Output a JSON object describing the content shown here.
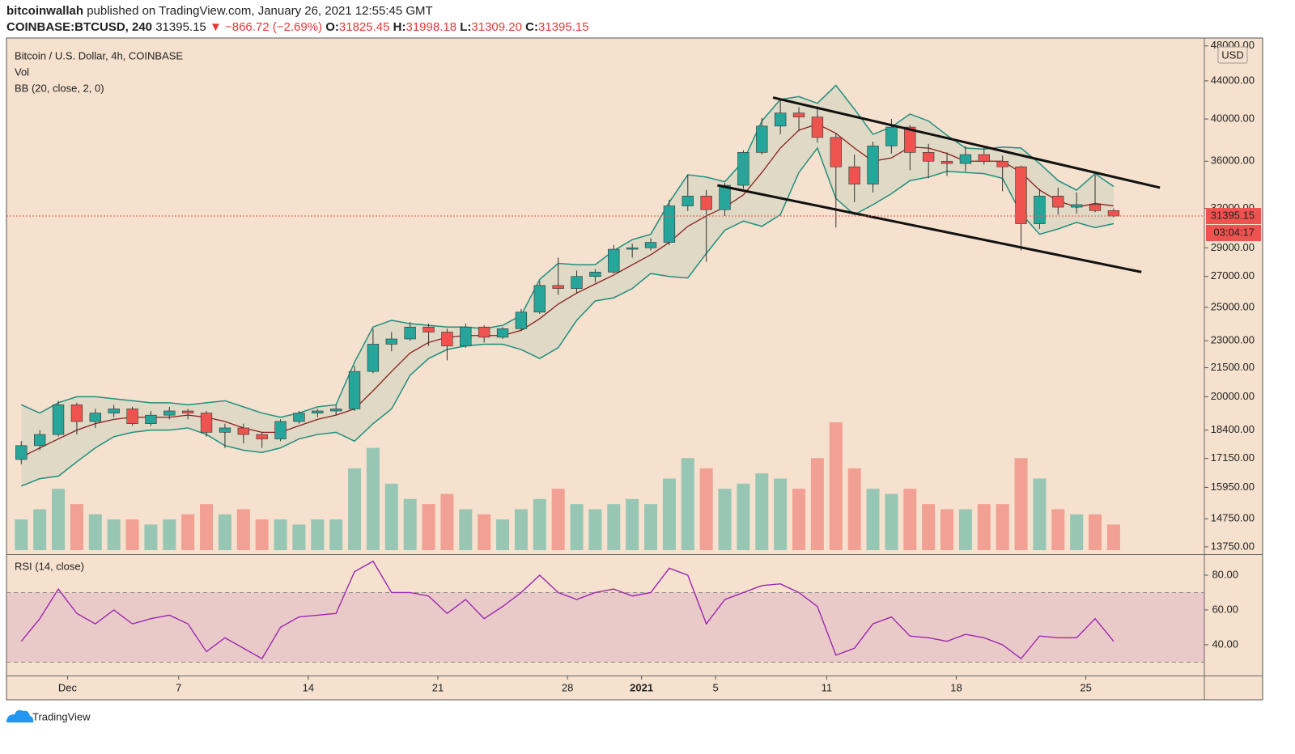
{
  "header": {
    "publisher": "bitcoinwallah",
    "published": "published on TradingView.com, January 26, 2021 12:55:45 GMT",
    "symbol": "COINBASE:BTCUSD, 240",
    "price": "31395.15",
    "change": "▼ −866.72 (−2.69%)",
    "o_label": "O:",
    "o": "31825.45",
    "h_label": "H:",
    "h": "31998.18",
    "l_label": "L:",
    "l": "31309.20",
    "c_label": "C:",
    "c": "31395.15"
  },
  "footer": {
    "brand": "TradingView"
  },
  "chart_data": [
    {
      "type": "candlestick",
      "title": "Bitcoin / U.S. Dollar, 4h, COINBASE",
      "y_label": "USD",
      "log_scale": true,
      "up_color": "#26a69a",
      "down_color": "#ef5350",
      "xlim": [
        -0.3,
        64.4
      ],
      "ylim": [
        13500,
        48960
      ],
      "yticks": [
        {
          "value": 48000,
          "label": "48000.00"
        },
        {
          "value": 44000,
          "label": "44000.00"
        },
        {
          "value": 40000,
          "label": "40000.00"
        },
        {
          "value": 36000,
          "label": "36000.00"
        },
        {
          "value": 32000,
          "label": "32000.00"
        },
        {
          "value": 29000,
          "label": "29000.00"
        },
        {
          "value": 27000,
          "label": "27000.00"
        },
        {
          "value": 25000,
          "label": "25000.00"
        },
        {
          "value": 23000,
          "label": "23000.00"
        },
        {
          "value": 21500,
          "label": "21500.00"
        },
        {
          "value": 20000,
          "label": "20000.00"
        },
        {
          "value": 18400,
          "label": "18400.00"
        },
        {
          "value": 17150,
          "label": "17150.00"
        },
        {
          "value": 15950,
          "label": "15950.00"
        },
        {
          "value": 14750,
          "label": "14750.00"
        },
        {
          "value": 13750,
          "label": "13750.00"
        }
      ],
      "open": [
        17100,
        17700,
        18200,
        19600,
        18800,
        19200,
        19400,
        18700,
        19100,
        19300,
        19200,
        18300,
        18500,
        18200,
        18000,
        18800,
        19200,
        19300,
        19400,
        21300,
        22800,
        23100,
        23800,
        23500,
        22700,
        23800,
        23200,
        23700,
        24700,
        26400,
        26200,
        27000,
        27300,
        28900,
        29000,
        29400,
        32200,
        33000,
        31900,
        33900,
        36800,
        39300,
        40600,
        40200,
        38200,
        35500,
        34000,
        37400,
        39200,
        36800,
        36000,
        35800,
        36600,
        36000,
        35500,
        30800,
        33000,
        32100,
        32300,
        31825.45
      ],
      "high": [
        17900,
        18400,
        19800,
        19700,
        19400,
        19600,
        19500,
        19300,
        19500,
        19400,
        19300,
        18700,
        18700,
        18300,
        18900,
        19300,
        19400,
        19600,
        21600,
        23700,
        23500,
        24100,
        24000,
        23700,
        24000,
        23900,
        23800,
        24900,
        26700,
        28300,
        27400,
        27500,
        29200,
        29300,
        29700,
        32700,
        34800,
        33500,
        34100,
        37000,
        40100,
        41900,
        41200,
        41300,
        38600,
        36600,
        37800,
        40000,
        39400,
        37600,
        36800,
        37400,
        37200,
        36500,
        35600,
        33600,
        33700,
        33300,
        34800,
        31998.18
      ],
      "low": [
        16900,
        17500,
        18100,
        18200,
        18500,
        19000,
        18600,
        18600,
        18900,
        18900,
        18100,
        17600,
        17800,
        17600,
        17900,
        18700,
        19000,
        19100,
        19300,
        21200,
        22400,
        23000,
        22700,
        21900,
        22600,
        22900,
        23100,
        23600,
        24600,
        25800,
        25900,
        26600,
        27200,
        28300,
        28800,
        29200,
        31800,
        28000,
        31400,
        33600,
        36600,
        38500,
        38800,
        37700,
        30500,
        32500,
        33300,
        36700,
        35200,
        34500,
        34700,
        35100,
        35700,
        33400,
        28800,
        30400,
        31500,
        31600,
        31700,
        31309.2
      ],
      "close": [
        17700,
        18200,
        19600,
        18800,
        19200,
        19400,
        18700,
        19100,
        19300,
        19200,
        18300,
        18500,
        18200,
        18000,
        18800,
        19200,
        19300,
        19400,
        21300,
        22800,
        23100,
        23800,
        23500,
        22700,
        23800,
        23200,
        23700,
        24700,
        26400,
        26200,
        27000,
        27300,
        28900,
        29000,
        29400,
        32200,
        33000,
        31900,
        33900,
        36800,
        39300,
        40600,
        40200,
        38200,
        35500,
        34000,
        37400,
        39200,
        36800,
        36000,
        35800,
        36600,
        36000,
        35500,
        30800,
        33000,
        32100,
        32300,
        31825.45,
        31395.15
      ],
      "volume_name": "Vol",
      "volume": [
        6,
        8,
        12,
        9,
        7,
        6,
        6,
        5,
        6,
        7,
        9,
        7,
        8,
        6,
        6,
        5,
        6,
        6,
        16,
        20,
        13,
        10,
        9,
        11,
        8,
        7,
        6,
        8,
        10,
        12,
        9,
        8,
        9,
        10,
        9,
        14,
        18,
        16,
        12,
        13,
        15,
        14,
        12,
        18,
        25,
        16,
        12,
        11,
        12,
        9,
        8,
        8,
        9,
        9,
        18,
        14,
        8,
        7,
        7,
        5
      ],
      "bb": {
        "name": "BB (20, close, 2, 0)",
        "band_color": "#1f8f80",
        "basis_color": "#8b1e1e",
        "upper": [
          19600,
          19200,
          19700,
          20000,
          20000,
          19900,
          19800,
          19700,
          19700,
          19600,
          19700,
          19800,
          19500,
          19200,
          19000,
          19200,
          19500,
          19600,
          21800,
          23800,
          24200,
          24000,
          23900,
          23800,
          23800,
          23700,
          23900,
          24500,
          26800,
          27900,
          27800,
          27800,
          28800,
          29600,
          30000,
          32500,
          34800,
          34600,
          34200,
          36000,
          39800,
          42000,
          42300,
          41600,
          43500,
          41000,
          38500,
          39200,
          40500,
          39800,
          38400,
          37200,
          37100,
          37300,
          37200,
          35800,
          34300,
          33500,
          34900,
          33800
        ],
        "basis": [
          17200,
          17600,
          18000,
          18400,
          18700,
          18900,
          19000,
          19000,
          19000,
          19100,
          19000,
          18800,
          18500,
          18300,
          18300,
          18600,
          18900,
          19100,
          19400,
          20300,
          21300,
          22300,
          22900,
          23200,
          23300,
          23300,
          23300,
          23600,
          24300,
          25200,
          25900,
          26500,
          27100,
          27800,
          28500,
          29400,
          30600,
          31400,
          32100,
          33100,
          35000,
          37200,
          38900,
          39500,
          38600,
          37200,
          36000,
          36300,
          37300,
          37200,
          36700,
          36000,
          36000,
          36000,
          35000,
          33500,
          32600,
          32100,
          32400,
          32200
        ],
        "lower": [
          16000,
          16300,
          16400,
          17000,
          17600,
          18100,
          18300,
          18400,
          18400,
          18500,
          18200,
          17700,
          17500,
          17400,
          17600,
          18000,
          18200,
          18300,
          17900,
          18700,
          19400,
          21100,
          22000,
          22500,
          22700,
          22800,
          22800,
          22500,
          22000,
          22600,
          24200,
          25400,
          25600,
          26200,
          27200,
          27000,
          26900,
          28600,
          30300,
          31000,
          30600,
          31500,
          35000,
          37200,
          32800,
          31500,
          32300,
          33200,
          34300,
          34600,
          35100,
          35000,
          34900,
          34500,
          31600,
          30000,
          30400,
          30900,
          30500,
          30800
        ]
      },
      "channel": [
        {
          "x": [
            41.1,
            62.0
          ],
          "y": [
            42200,
            33700
          ]
        },
        {
          "x": [
            38.1,
            61.0
          ],
          "y": [
            33900,
            27300
          ]
        }
      ],
      "last_price": 31395.15,
      "countdown": "03:04:17"
    },
    {
      "type": "line",
      "title": "RSI (14, close)",
      "color": "#9c27b0",
      "xlim": [
        -0.3,
        64.4
      ],
      "ylim": [
        22.3,
        91.6
      ],
      "band": [
        30,
        70
      ],
      "yticks": [
        {
          "value": 40,
          "label": "40.00"
        },
        {
          "value": 60,
          "label": "60.00"
        },
        {
          "value": 80,
          "label": "80.00"
        }
      ],
      "xticks": [
        {
          "value": 3,
          "label": "Dec"
        },
        {
          "value": 9,
          "label": "7"
        },
        {
          "value": 16,
          "label": "14"
        },
        {
          "value": 23,
          "label": "21"
        },
        {
          "value": 30,
          "label": "28"
        },
        {
          "value": 34,
          "label": "2021"
        },
        {
          "value": 38,
          "label": "5"
        },
        {
          "value": 44,
          "label": "11"
        },
        {
          "value": 51,
          "label": "18"
        },
        {
          "value": 58,
          "label": "25"
        }
      ],
      "values": [
        42,
        55,
        72,
        58,
        52,
        60,
        52,
        55,
        57,
        52,
        36,
        44,
        38,
        32,
        50,
        56,
        57,
        58,
        82,
        88,
        70,
        70,
        68,
        58,
        66,
        55,
        62,
        70,
        80,
        70,
        66,
        70,
        72,
        68,
        70,
        84,
        80,
        52,
        66,
        70,
        74,
        75,
        70,
        62,
        34,
        38,
        52,
        56,
        45,
        44,
        42,
        46,
        44,
        40,
        32,
        45,
        44,
        44,
        55,
        42
      ]
    }
  ]
}
